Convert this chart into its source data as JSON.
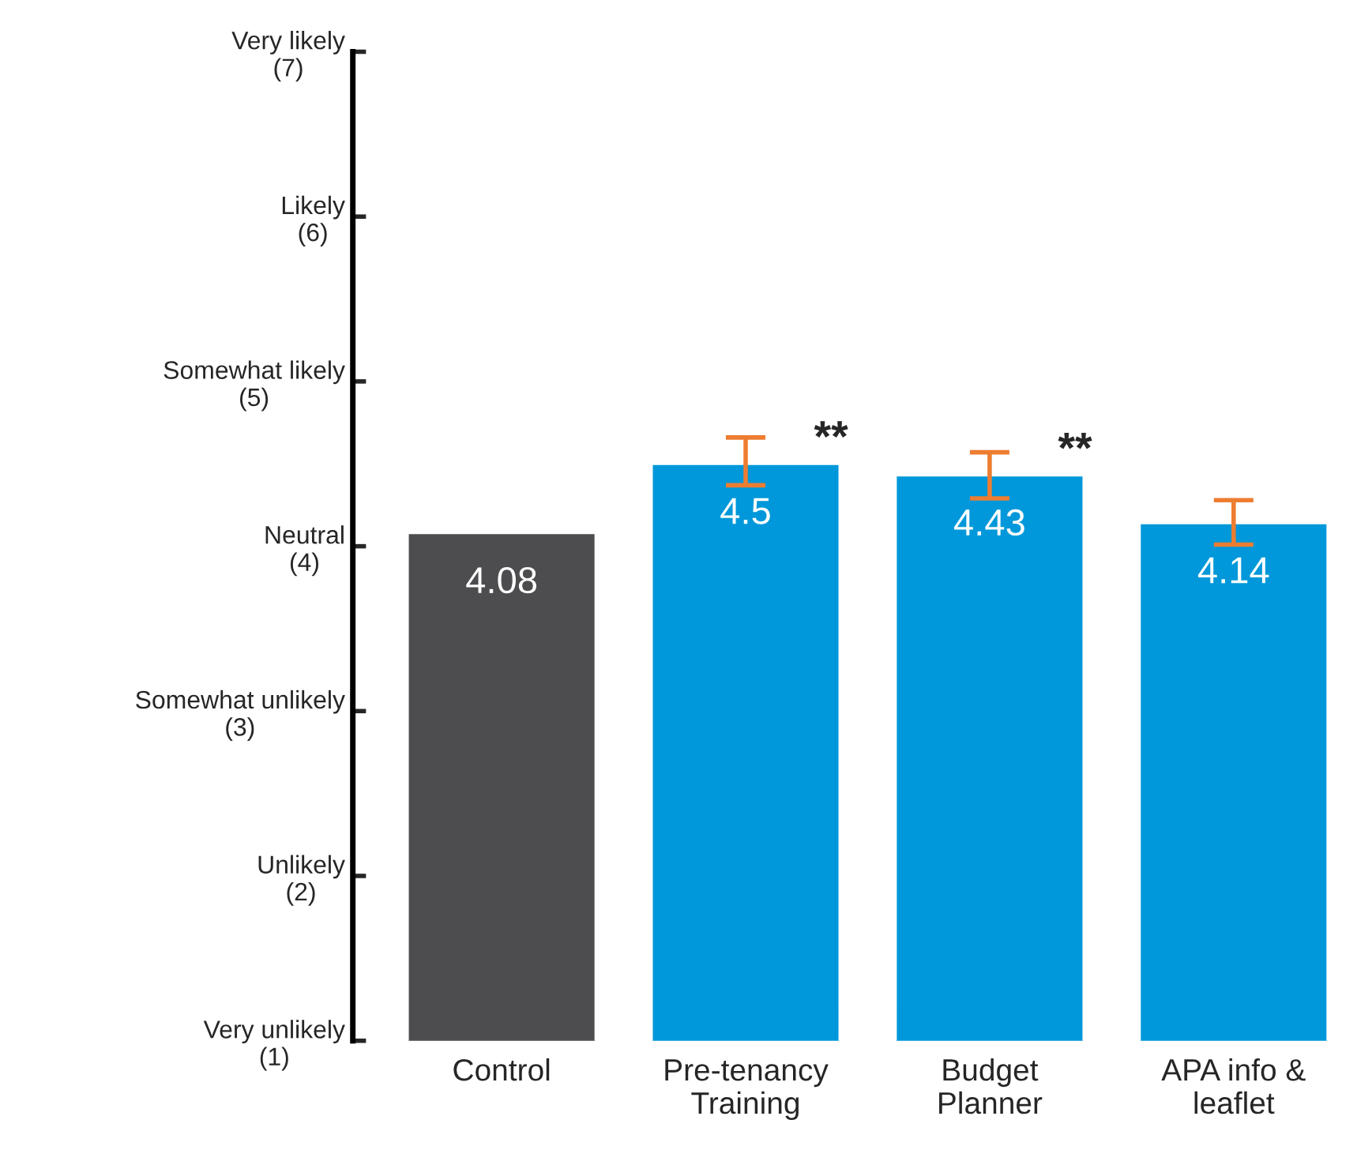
{
  "chart_data": {
    "type": "bar",
    "categories": [
      "Control",
      "Pre-tenancy\nTraining",
      "Budget\nPlanner",
      "APA info &\nleaflet"
    ],
    "values": [
      4.08,
      4.5,
      4.43,
      4.14
    ],
    "colors": [
      "#4d4d4f",
      "#0098da",
      "#0098da",
      "#0098da"
    ],
    "errors": [
      null,
      [
        4.37,
        4.66
      ],
      [
        4.29,
        4.57
      ],
      [
        4.01,
        4.28
      ]
    ],
    "ylim": [
      1,
      7
    ],
    "yticks": [
      {
        "value": 1,
        "label": "Very unlikely\n(1)"
      },
      {
        "value": 2,
        "label": "Unlikely\n(2)"
      },
      {
        "value": 3,
        "label": "Somewhat unlikely\n(3)"
      },
      {
        "value": 4,
        "label": "Neutral\n(4)"
      },
      {
        "value": 5,
        "label": "Somewhat likely\n(5)"
      },
      {
        "value": 6,
        "label": "Likely\n(6)"
      },
      {
        "value": 7,
        "label": "Very likely\n(7)"
      }
    ],
    "data_labels": true,
    "annotations": [
      {
        "text": "**",
        "x": "Pre-tenancy\nTraining",
        "y": 4.5
      },
      {
        "text": "**",
        "x": "Budget\nPlanner",
        "y": 4.43
      }
    ],
    "grid": false
  }
}
